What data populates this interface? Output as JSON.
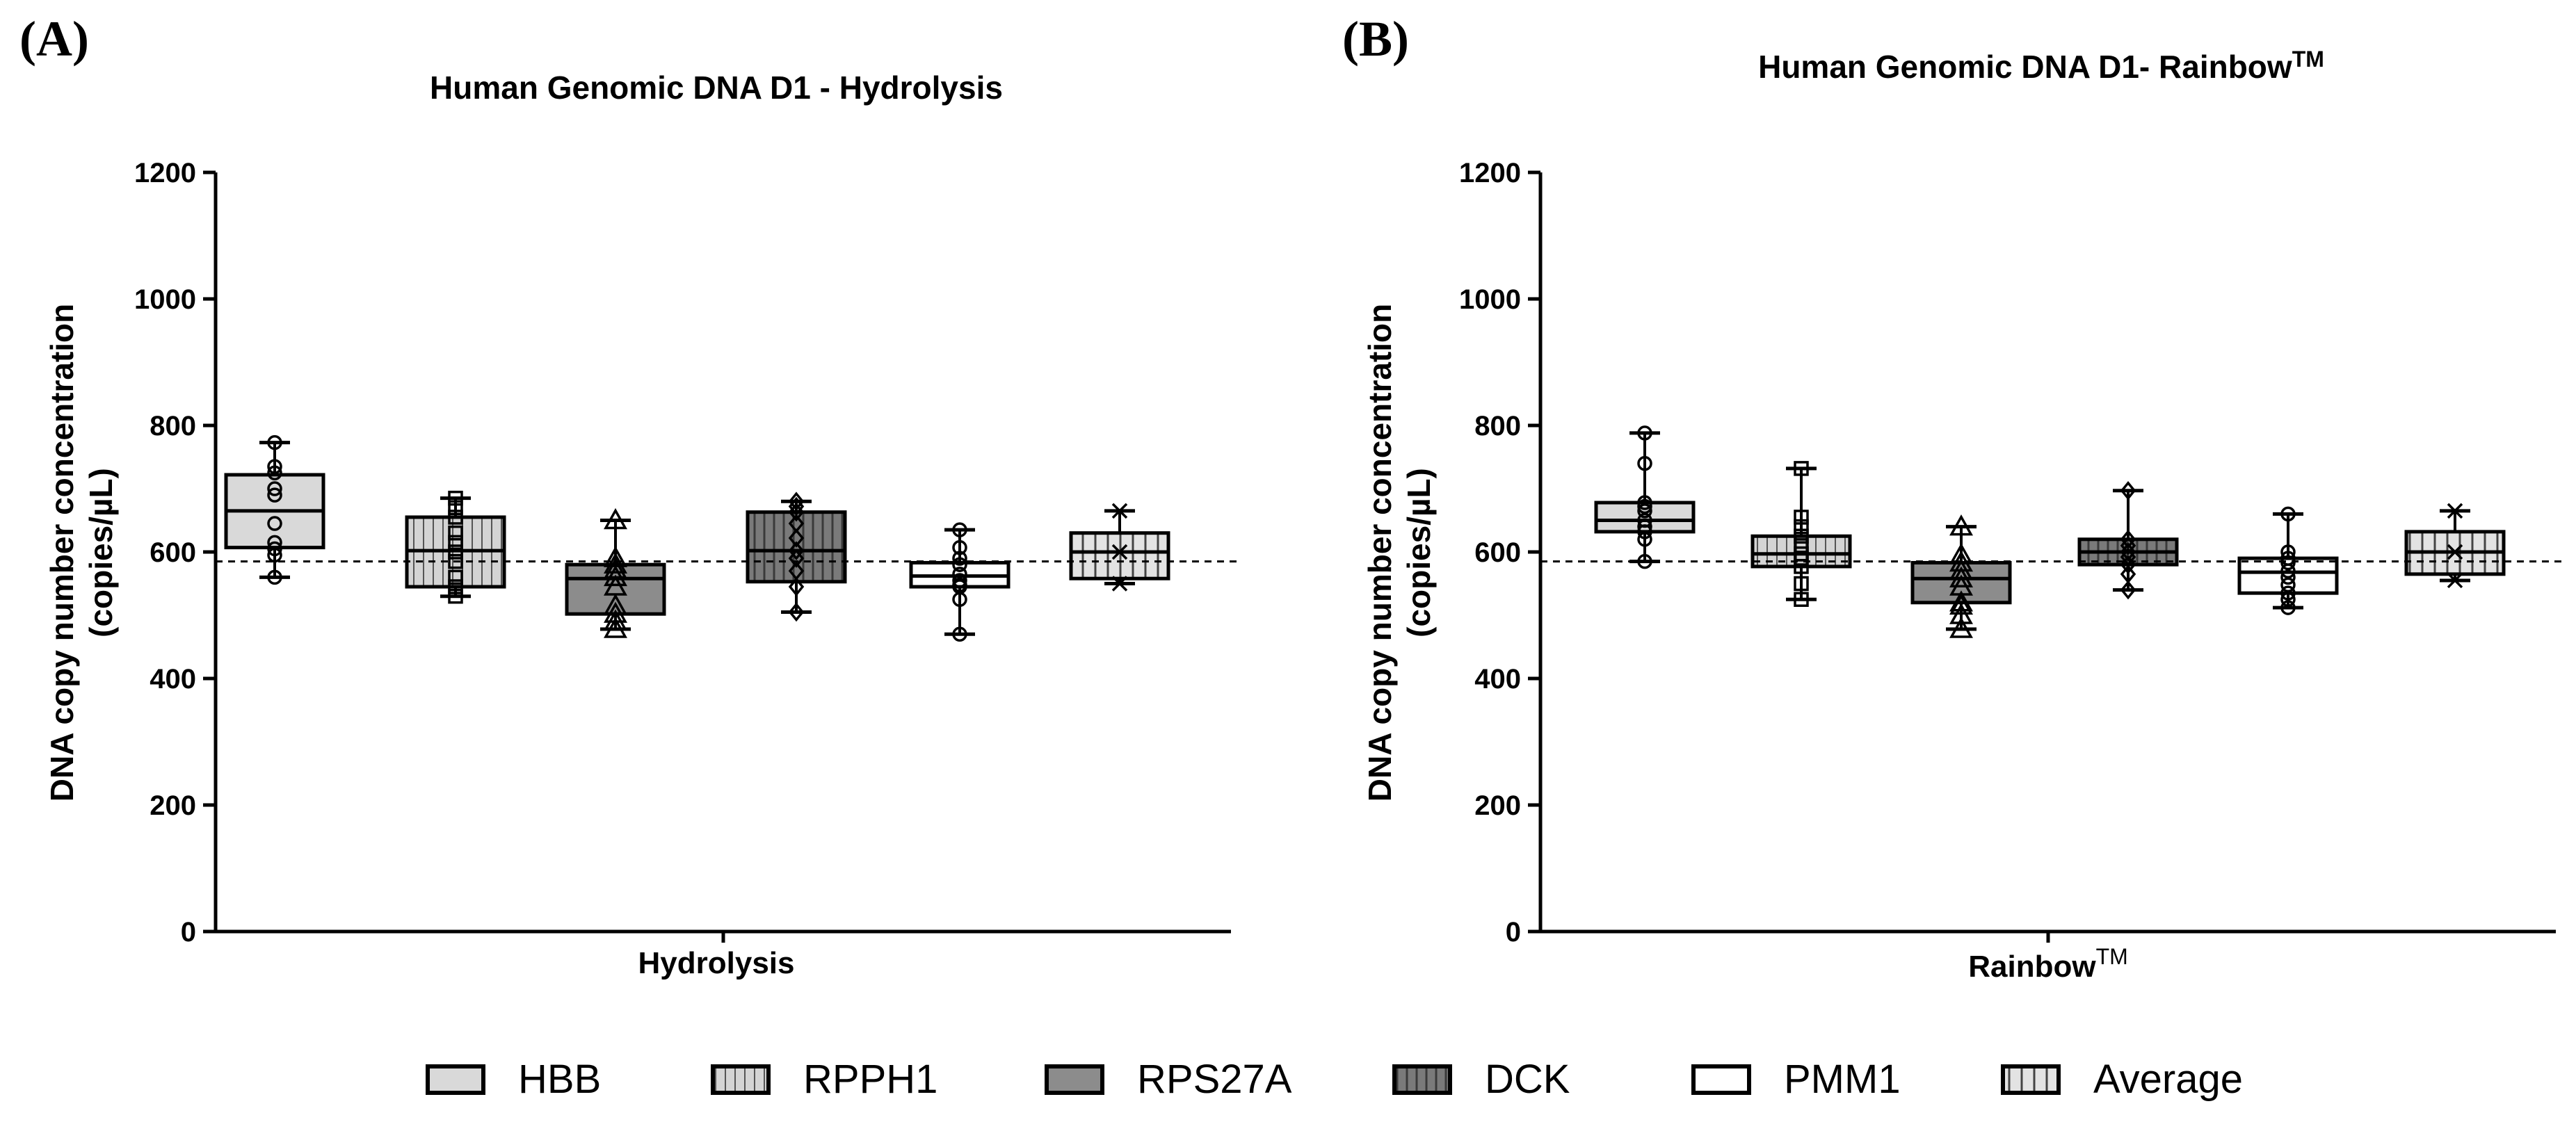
{
  "figure": {
    "panel_a_label": "(A)",
    "panel_b_label": "(B)"
  },
  "colors": {
    "HBB": "#d9d9d9",
    "RPPH1": "#d4d4d4",
    "RPS27A": "#8c8c8c",
    "DCK": "#7a7a7a",
    "PMM1": "#ffffff",
    "Average": "#e3e3e3"
  },
  "chart_data": [
    {
      "type": "box",
      "title": "Human Genomic DNA D1 - Hydrolysis",
      "ylabel_line1": "DNA copy number concentration",
      "ylabel_line2": "(copies/µL)",
      "xlabel": "Hydrolysis",
      "ylim": [
        0,
        1200
      ],
      "yticks": [
        "0",
        "200",
        "400",
        "600",
        "800",
        "1000",
        "1200"
      ],
      "reference_line": 585,
      "series": [
        {
          "name": "HBB",
          "min": 560,
          "q1": 607,
          "median": 665,
          "q3": 722,
          "max": 773,
          "marker": "circle",
          "points": [
            560,
            595,
            605,
            615,
            645,
            690,
            700,
            725,
            735,
            773
          ]
        },
        {
          "name": "RPPH1",
          "min": 530,
          "q1": 545,
          "median": 602,
          "q3": 655,
          "max": 685,
          "marker": "square",
          "points": [
            530,
            545,
            560,
            585,
            600,
            615,
            630,
            655,
            670,
            685
          ]
        },
        {
          "name": "RPS27A",
          "min": 478,
          "q1": 502,
          "median": 558,
          "q3": 580,
          "max": 650,
          "marker": "triangle",
          "points": [
            478,
            490,
            502,
            515,
            545,
            560,
            572,
            580,
            590,
            650
          ]
        },
        {
          "name": "DCK",
          "min": 505,
          "q1": 553,
          "median": 602,
          "q3": 663,
          "max": 680,
          "marker": "diamond",
          "points": [
            505,
            545,
            570,
            590,
            602,
            622,
            645,
            663,
            672,
            680
          ]
        },
        {
          "name": "PMM1",
          "min": 470,
          "q1": 545,
          "median": 562,
          "q3": 583,
          "max": 635,
          "marker": "circle",
          "points": [
            470,
            525,
            545,
            548,
            555,
            565,
            580,
            590,
            607,
            635
          ]
        },
        {
          "name": "Average",
          "min": 550,
          "q1": 558,
          "median": 600,
          "q3": 630,
          "max": 665,
          "marker": "x",
          "points": [
            550,
            600,
            665
          ]
        }
      ]
    },
    {
      "type": "box",
      "title": "Human Genomic DNA D1- Rainbow",
      "title_sup": "TM",
      "ylabel_line1": "DNA copy number concentration",
      "ylabel_line2": "(copies/µL)",
      "xlabel": "Rainbow",
      "xlabel_sup": "TM",
      "ylim": [
        0,
        1200
      ],
      "yticks": [
        "0",
        "200",
        "400",
        "600",
        "800",
        "1000",
        "1200"
      ],
      "reference_line": 585,
      "series": [
        {
          "name": "HBB",
          "min": 585,
          "q1": 632,
          "median": 650,
          "q3": 678,
          "max": 788,
          "marker": "circle",
          "points": [
            585,
            620,
            632,
            640,
            650,
            665,
            672,
            678,
            740,
            788
          ]
        },
        {
          "name": "RPPH1",
          "min": 525,
          "q1": 577,
          "median": 597,
          "q3": 625,
          "max": 732,
          "marker": "square",
          "points": [
            525,
            550,
            577,
            590,
            597,
            610,
            625,
            640,
            655,
            732
          ]
        },
        {
          "name": "RPS27A",
          "min": 478,
          "q1": 520,
          "median": 558,
          "q3": 583,
          "max": 640,
          "marker": "triangle",
          "points": [
            478,
            500,
            515,
            520,
            545,
            558,
            570,
            583,
            595,
            640
          ]
        },
        {
          "name": "DCK",
          "min": 540,
          "q1": 580,
          "median": 600,
          "q3": 620,
          "max": 697,
          "marker": "diamond",
          "points": [
            540,
            565,
            580,
            592,
            600,
            610,
            620,
            697
          ]
        },
        {
          "name": "PMM1",
          "min": 512,
          "q1": 535,
          "median": 568,
          "q3": 590,
          "max": 660,
          "marker": "circle",
          "points": [
            512,
            525,
            535,
            548,
            560,
            570,
            583,
            590,
            600,
            660
          ]
        },
        {
          "name": "Average",
          "min": 555,
          "q1": 565,
          "median": 600,
          "q3": 632,
          "max": 665,
          "marker": "x",
          "points": [
            555,
            600,
            665
          ]
        }
      ]
    }
  ],
  "legend": [
    {
      "label": "HBB",
      "pattern": "solid"
    },
    {
      "label": "RPPH1",
      "pattern": "vstripes"
    },
    {
      "label": "RPS27A",
      "pattern": "solid"
    },
    {
      "label": "DCK",
      "pattern": "dark-vstripes"
    },
    {
      "label": "PMM1",
      "pattern": "solid"
    },
    {
      "label": "Average",
      "pattern": "wide-vstripes"
    }
  ]
}
